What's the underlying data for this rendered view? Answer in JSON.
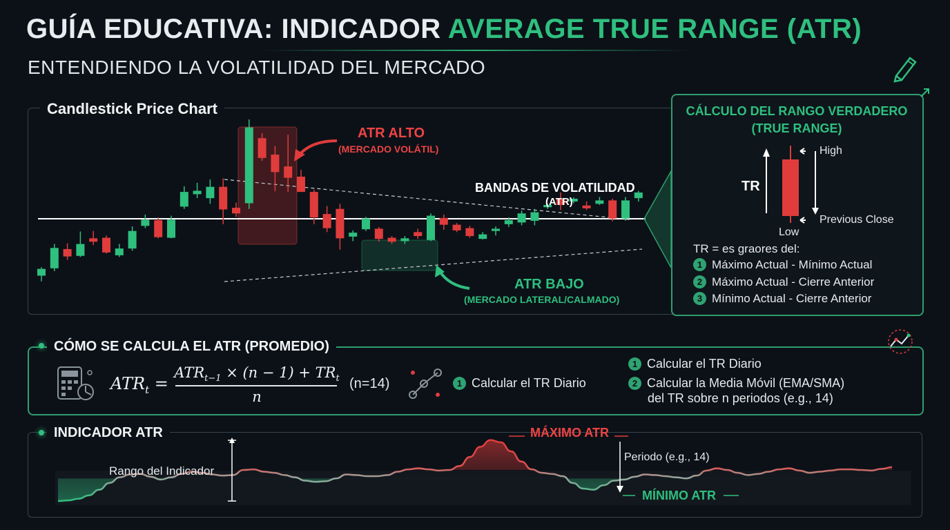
{
  "header": {
    "title_main": "GUÍA EDUCATIVA: INDICADOR ",
    "title_accent": "AVERAGE TRUE RANGE (ATR)",
    "subtitle": "ENTENDIENDO LA VOLATILIDAD DEL MERCADO",
    "pencil_icon": "pencil-icon"
  },
  "candlestick_panel": {
    "title": "Candlestick Price Chart",
    "atr_high_label": "ATR ALTO",
    "atr_high_sub": "(MERCADO VOLÁTIL)",
    "bands_label": "BANDAS DE VOLATILIDAD",
    "bands_sub": "(ATR)",
    "atr_low_label": "ATR BAJO",
    "atr_low_sub": "(MERCADO LATERAL/CALMADO)",
    "colors": {
      "up": "#2fbf7f",
      "down": "#e03c3c"
    }
  },
  "chart_data": [
    {
      "type": "candlestick",
      "title": "Candlestick Price Chart",
      "candles": [
        {
          "o": 47,
          "c": 59,
          "h": 62,
          "l": 37
        },
        {
          "o": 60,
          "c": 96,
          "h": 103,
          "l": 55
        },
        {
          "o": 94,
          "c": 81,
          "h": 104,
          "l": 75
        },
        {
          "o": 82,
          "c": 103,
          "h": 125,
          "l": 80
        },
        {
          "o": 113,
          "c": 107,
          "h": 126,
          "l": 101
        },
        {
          "o": 114,
          "c": 88,
          "h": 118,
          "l": 86
        },
        {
          "o": 83,
          "c": 95,
          "h": 103,
          "l": 80
        },
        {
          "o": 95,
          "c": 126,
          "h": 134,
          "l": 91
        },
        {
          "o": 135,
          "c": 146,
          "h": 155,
          "l": 131
        },
        {
          "o": 145,
          "c": 115,
          "h": 150,
          "l": 113
        },
        {
          "o": 114,
          "c": 146,
          "h": 153,
          "l": 113
        },
        {
          "o": 169,
          "c": 195,
          "h": 205,
          "l": 165
        },
        {
          "o": 191,
          "c": 197,
          "h": 211,
          "l": 184
        },
        {
          "o": 184,
          "c": 204,
          "h": 217,
          "l": 174
        },
        {
          "o": 204,
          "c": 164,
          "h": 219,
          "l": 138
        },
        {
          "o": 167,
          "c": 157,
          "h": 176,
          "l": 151
        },
        {
          "o": 175,
          "c": 309,
          "h": 323,
          "l": 165
        },
        {
          "o": 290,
          "c": 255,
          "h": 299,
          "l": 250
        },
        {
          "o": 261,
          "c": 230,
          "h": 276,
          "l": 196
        },
        {
          "o": 240,
          "c": 220,
          "h": 296,
          "l": 195
        },
        {
          "o": 222,
          "c": 195,
          "h": 234,
          "l": 195
        },
        {
          "o": 195,
          "c": 150,
          "h": 199,
          "l": 138
        },
        {
          "o": 156,
          "c": 131,
          "h": 170,
          "l": 124
        },
        {
          "o": 165,
          "c": 113,
          "h": 174,
          "l": 93
        },
        {
          "o": 116,
          "c": 123,
          "h": 127,
          "l": 108
        },
        {
          "o": 129,
          "c": 148,
          "h": 151,
          "l": 126
        },
        {
          "o": 130,
          "c": 112,
          "h": 133,
          "l": 107
        },
        {
          "o": 114,
          "c": 107,
          "h": 117,
          "l": 103
        },
        {
          "o": 108,
          "c": 113,
          "h": 117,
          "l": 103
        },
        {
          "o": 124,
          "c": 117,
          "h": 130,
          "l": 112
        },
        {
          "o": 110,
          "c": 153,
          "h": 157,
          "l": 108
        },
        {
          "o": 149,
          "c": 137,
          "h": 155,
          "l": 128
        },
        {
          "o": 137,
          "c": 127,
          "h": 140,
          "l": 124
        },
        {
          "o": 131,
          "c": 117,
          "h": 135,
          "l": 114
        },
        {
          "o": 112,
          "c": 120,
          "h": 124,
          "l": 111
        },
        {
          "o": 126,
          "c": 130,
          "h": 134,
          "l": 118
        },
        {
          "o": 138,
          "c": 145,
          "h": 150,
          "l": 133
        },
        {
          "o": 141,
          "c": 157,
          "h": 162,
          "l": 136
        },
        {
          "o": 144,
          "c": 159,
          "h": 165,
          "l": 136
        },
        {
          "o": 168,
          "c": 172,
          "h": 174,
          "l": 165
        },
        {
          "o": 183,
          "c": 172,
          "h": 194,
          "l": 163
        },
        {
          "o": 178,
          "c": 183,
          "h": 185,
          "l": 175
        },
        {
          "o": 171,
          "c": 166,
          "h": 178,
          "l": 163
        },
        {
          "o": 174,
          "c": 180,
          "h": 186,
          "l": 172
        },
        {
          "o": 180,
          "c": 148,
          "h": 183,
          "l": 143
        },
        {
          "o": 148,
          "c": 180,
          "h": 186,
          "l": 144
        },
        {
          "o": 184,
          "c": 194,
          "h": 197,
          "l": 178
        }
      ]
    },
    {
      "type": "line",
      "title": "INDICADOR ATR",
      "series": [
        {
          "values": [
            0,
            1,
            4,
            10,
            20,
            32,
            42,
            47,
            48,
            43,
            38,
            42,
            48,
            52,
            50,
            47,
            45,
            46,
            55,
            56,
            52,
            50,
            46,
            42,
            36,
            34,
            35,
            40,
            47,
            46,
            44,
            44,
            46,
            52,
            56,
            58,
            56,
            54,
            55,
            62,
            78,
            96,
            108,
            104,
            88,
            70,
            56,
            50,
            48,
            44,
            32,
            22,
            20,
            28,
            36,
            38,
            43,
            47,
            46,
            44,
            42,
            40,
            45,
            54,
            58,
            55,
            50,
            46,
            48,
            52,
            56,
            58,
            54,
            50,
            52,
            54,
            56,
            56,
            55,
            54,
            57,
            60
          ]
        }
      ],
      "ylim": [
        0,
        110
      ]
    }
  ],
  "true_range_panel": {
    "title_line1": "CÁLCULO DEL RANGO VERDADERO",
    "title_line2": "(TRUE RANGE)",
    "tr_label": "TR",
    "high_label": "High",
    "low_label": "Low",
    "prev_close_label": "Previous Close",
    "intro": "TR = es graores del:",
    "items": [
      "Máximo Actual - Mínimo Actual",
      "Máximo Actual - Cierre Anterior",
      "Mínimo Actual - Cierre Anterior"
    ],
    "numbers": [
      "1",
      "2",
      "3"
    ]
  },
  "calc_panel": {
    "title": "CÓMO SE CALCULA EL ATR (PROMEDIO)",
    "formula_lhs": "ATR",
    "formula_lhs_sub": "t",
    "formula_num": "ATR",
    "formula_num_sub": "t−1",
    "formula_num_rest": " × (n − 1) + TR",
    "formula_num_sub2": "t",
    "formula_den": "n",
    "formula_param": "(n=14)",
    "step_mid": "Calcular el TR Diario",
    "step_right_1": "Calcular el TR Diario",
    "step_right_2a": "Calcular la Media Móvil (EMA/SMA)",
    "step_right_2b": "del TR sobre n periodos (e.g., 14)",
    "numbers": [
      "1",
      "2"
    ],
    "calculator_icon": "calculator-icon",
    "nodes_icon": "nodes-icon",
    "analytics_icon": "analytics-icon"
  },
  "atr_panel": {
    "title": "INDICADOR ATR",
    "range_label": "Rango del Indicador",
    "max_label": "MÁXIMO ATR",
    "period_label": "Periodo (e.g., 14)",
    "min_label": "MÍNIMO ATR"
  }
}
